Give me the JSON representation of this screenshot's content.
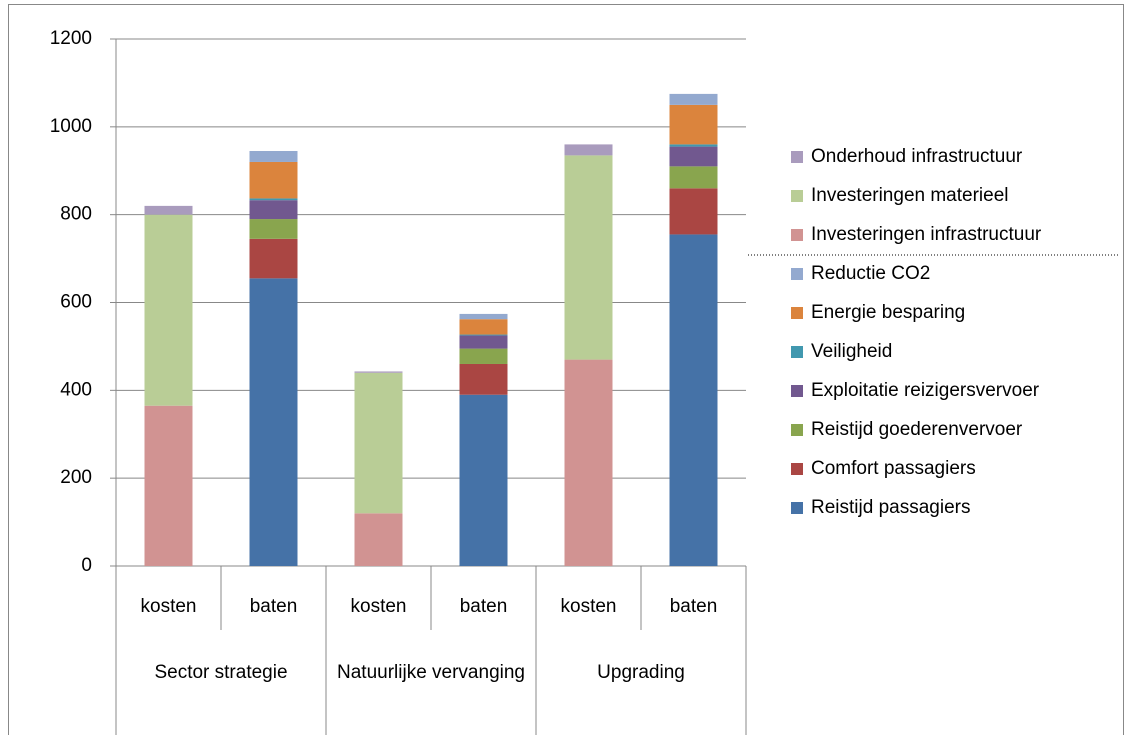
{
  "chart_data": {
    "type": "stacked_bar",
    "categories": [
      "kosten",
      "baten",
      "kosten",
      "baten",
      "kosten",
      "baten"
    ],
    "groups": [
      "Sector strategie",
      "Natuurlijke vervanging",
      "Upgrading"
    ],
    "series": [
      {
        "name": "Reistijd passagiers",
        "color": "#4572a7",
        "values": [
          null,
          655,
          null,
          390,
          null,
          755
        ]
      },
      {
        "name": "Comfort passagiers",
        "color": "#aa4643",
        "values": [
          null,
          90,
          null,
          70,
          null,
          105
        ]
      },
      {
        "name": "Reistijd goederenvervoer",
        "color": "#89a54e",
        "values": [
          null,
          45,
          null,
          35,
          null,
          50
        ]
      },
      {
        "name": "Exploitatie reizigersvervoer",
        "color": "#71588f",
        "values": [
          null,
          43,
          null,
          30,
          null,
          45
        ]
      },
      {
        "name": "Veiligheid",
        "color": "#4198af",
        "values": [
          null,
          4,
          null,
          2,
          null,
          5
        ]
      },
      {
        "name": "Energie besparing",
        "color": "#db843d",
        "values": [
          null,
          83,
          null,
          35,
          null,
          90
        ]
      },
      {
        "name": "Reductie CO2",
        "color": "#93a9cf",
        "values": [
          null,
          25,
          null,
          12,
          null,
          25
        ]
      },
      {
        "name": "Investeringen infrastructuur",
        "color": "#d19392",
        "values": [
          365,
          null,
          120,
          null,
          470,
          null
        ]
      },
      {
        "name": "Investeringen materieel",
        "color": "#b9cd96",
        "values": [
          435,
          null,
          320,
          null,
          465,
          null
        ]
      },
      {
        "name": "Onderhoud infrastructuur",
        "color": "#a99bbd",
        "values": [
          20,
          null,
          3,
          null,
          25,
          null
        ]
      }
    ],
    "ylim": [
      0,
      1200
    ],
    "yticks": [
      0,
      200,
      400,
      600,
      800,
      1000,
      1200
    ],
    "grid": true
  }
}
